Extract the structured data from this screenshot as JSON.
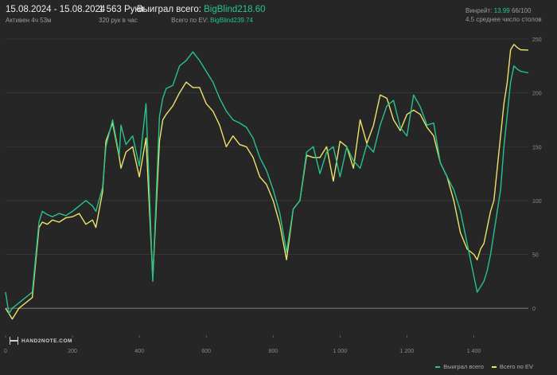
{
  "header": {
    "date_range": "15.08.2024 - 15.08.2024",
    "active_time": "Активен 4ч 53м",
    "hands": "1 563 Руки",
    "hands_per_hour": "320 рук в час",
    "won_label": "Выиграл всего:",
    "won_value": "BigBlind218.60",
    "ev_label": "Всего по EV:",
    "ev_value": "BigBlind239.74",
    "winrate_label": "Винрейт:",
    "winrate_value": "13.99",
    "winrate_extra": "66/100",
    "avg_tables": "4.5 среднее число столов"
  },
  "logo": {
    "text": "HAND2NOTE.COM"
  },
  "colors": {
    "won": "#27c38a",
    "ev": "#ede36a",
    "background": "#262626",
    "grid": "#3a3a3a"
  },
  "chart_data": {
    "type": "line",
    "xlim": [
      0,
      1563
    ],
    "ylim": [
      -25,
      250
    ],
    "x_ticks": [
      {
        "value": 0,
        "label": "0"
      },
      {
        "value": 200,
        "label": "200"
      },
      {
        "value": 400,
        "label": "400"
      },
      {
        "value": 600,
        "label": "600"
      },
      {
        "value": 800,
        "label": "800"
      },
      {
        "value": 1000,
        "label": "1 000"
      },
      {
        "value": 1200,
        "label": "1 200"
      },
      {
        "value": 1400,
        "label": "1 400"
      }
    ],
    "y_ticks": [
      {
        "value": 0,
        "label": "0"
      },
      {
        "value": 50,
        "label": "50"
      },
      {
        "value": 100,
        "label": "100"
      },
      {
        "value": 150,
        "label": "150"
      },
      {
        "value": 200,
        "label": "200"
      },
      {
        "value": 250,
        "label": "250"
      }
    ],
    "series": [
      {
        "name": "Выиграл всего",
        "color": "#27c38a",
        "x": [
          0,
          10,
          20,
          40,
          60,
          80,
          100,
          110,
          125,
          140,
          160,
          180,
          200,
          220,
          240,
          260,
          270,
          290,
          300,
          320,
          340,
          345,
          360,
          380,
          400,
          420,
          440,
          460,
          470,
          480,
          500,
          520,
          540,
          560,
          580,
          600,
          620,
          640,
          660,
          680,
          700,
          720,
          740,
          760,
          780,
          800,
          820,
          840,
          860,
          880,
          900,
          920,
          940,
          960,
          980,
          1000,
          1020,
          1040,
          1060,
          1080,
          1100,
          1120,
          1140,
          1160,
          1180,
          1200,
          1220,
          1240,
          1260,
          1280,
          1300,
          1320,
          1340,
          1360,
          1380,
          1400,
          1410,
          1420,
          1430,
          1440,
          1450,
          1460,
          1470,
          1480,
          1490,
          1500,
          1510,
          1520,
          1530,
          1540,
          1563
        ],
        "y": [
          15,
          -5,
          0,
          5,
          10,
          15,
          80,
          90,
          87,
          85,
          88,
          86,
          90,
          95,
          100,
          95,
          90,
          112,
          150,
          175,
          142,
          170,
          152,
          160,
          132,
          190,
          25,
          178,
          195,
          204,
          207,
          225,
          230,
          238,
          230,
          220,
          210,
          195,
          183,
          175,
          172,
          168,
          158,
          140,
          128,
          110,
          88,
          52,
          92,
          100,
          145,
          150,
          125,
          145,
          150,
          122,
          150,
          137,
          130,
          152,
          145,
          170,
          188,
          193,
          168,
          160,
          198,
          187,
          170,
          172,
          135,
          122,
          110,
          90,
          60,
          30,
          15,
          20,
          25,
          35,
          50,
          70,
          90,
          110,
          150,
          180,
          210,
          225,
          222,
          220,
          218.6
        ]
      },
      {
        "name": "Всего по EV",
        "color": "#ede36a",
        "x": [
          0,
          10,
          20,
          40,
          60,
          80,
          100,
          110,
          125,
          140,
          160,
          180,
          200,
          220,
          240,
          260,
          270,
          290,
          300,
          320,
          340,
          345,
          360,
          380,
          400,
          420,
          440,
          460,
          470,
          480,
          500,
          520,
          540,
          560,
          580,
          600,
          620,
          640,
          660,
          680,
          700,
          720,
          740,
          760,
          780,
          800,
          820,
          840,
          860,
          880,
          900,
          920,
          940,
          960,
          980,
          1000,
          1020,
          1040,
          1060,
          1080,
          1100,
          1120,
          1140,
          1160,
          1180,
          1200,
          1220,
          1240,
          1260,
          1280,
          1300,
          1320,
          1340,
          1360,
          1380,
          1400,
          1410,
          1420,
          1430,
          1440,
          1450,
          1460,
          1470,
          1480,
          1490,
          1500,
          1510,
          1520,
          1530,
          1540,
          1563
        ],
        "y": [
          0,
          -5,
          -10,
          0,
          5,
          10,
          75,
          80,
          78,
          82,
          80,
          84,
          85,
          88,
          78,
          82,
          75,
          108,
          155,
          172,
          140,
          130,
          145,
          150,
          122,
          158,
          28,
          155,
          175,
          180,
          188,
          200,
          210,
          205,
          205,
          190,
          183,
          170,
          150,
          160,
          152,
          150,
          140,
          122,
          115,
          100,
          78,
          45,
          92,
          100,
          142,
          140,
          140,
          150,
          118,
          155,
          150,
          130,
          175,
          153,
          170,
          198,
          195,
          175,
          165,
          180,
          184,
          180,
          168,
          160,
          135,
          122,
          100,
          70,
          55,
          50,
          45,
          55,
          60,
          75,
          90,
          100,
          130,
          160,
          190,
          210,
          240,
          245,
          242,
          240,
          239.74
        ]
      }
    ],
    "legend": "bottom-right",
    "grid": true,
    "y_axis_side": "right"
  }
}
